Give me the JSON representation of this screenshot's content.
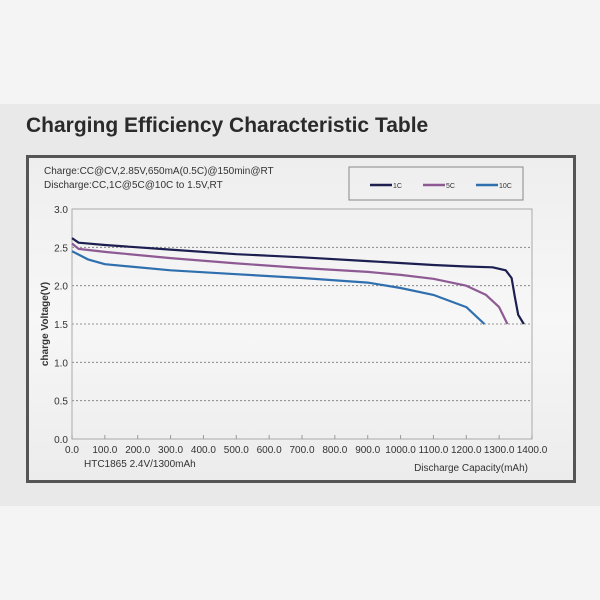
{
  "title": "Charging Efficiency Characteristic Table",
  "chart_data": {
    "type": "line",
    "title": "",
    "annotations": [
      "Charge:CC@CV,2.85V,650mA(0.5C)@150min@RT",
      "Discharge:CC,1C@5C@10C to 1.5V,RT",
      "HTC1865  2.4V/1300mAh"
    ],
    "xlabel": "Discharge Capacity(mAh)",
    "ylabel": "charge Voltage(V)",
    "xlim": [
      0,
      1400
    ],
    "ylim": [
      0,
      3.0
    ],
    "xticks": [
      "0.0",
      "100.0",
      "200.0",
      "300.0",
      "400.0",
      "500.0",
      "600.0",
      "700.0",
      "800.0",
      "900.0",
      "1000.0",
      "1100.0",
      "1200.0",
      "1300.0",
      "1400.0"
    ],
    "yticks": [
      "0.0",
      "0.5",
      "1.0",
      "1.5",
      "2.0",
      "2.5",
      "3.0"
    ],
    "grid": "horizontal dotted",
    "legend": "top-right",
    "series": [
      {
        "name": "1C",
        "color": "#1c1f4f",
        "points": [
          [
            0,
            2.62
          ],
          [
            20,
            2.56
          ],
          [
            100,
            2.53
          ],
          [
            300,
            2.47
          ],
          [
            500,
            2.41
          ],
          [
            700,
            2.37
          ],
          [
            900,
            2.32
          ],
          [
            1100,
            2.27
          ],
          [
            1200,
            2.25
          ],
          [
            1280,
            2.24
          ],
          [
            1320,
            2.2
          ],
          [
            1338,
            2.1
          ],
          [
            1348,
            1.85
          ],
          [
            1358,
            1.62
          ],
          [
            1375,
            1.5
          ]
        ]
      },
      {
        "name": "5C",
        "color": "#8e5a93",
        "points": [
          [
            0,
            2.55
          ],
          [
            20,
            2.48
          ],
          [
            100,
            2.44
          ],
          [
            300,
            2.36
          ],
          [
            500,
            2.29
          ],
          [
            700,
            2.23
          ],
          [
            900,
            2.18
          ],
          [
            1000,
            2.14
          ],
          [
            1100,
            2.09
          ],
          [
            1200,
            2.0
          ],
          [
            1260,
            1.88
          ],
          [
            1300,
            1.72
          ],
          [
            1325,
            1.5
          ]
        ]
      },
      {
        "name": "10C",
        "color": "#2f6fae",
        "points": [
          [
            0,
            2.45
          ],
          [
            50,
            2.34
          ],
          [
            100,
            2.28
          ],
          [
            300,
            2.2
          ],
          [
            500,
            2.15
          ],
          [
            700,
            2.1
          ],
          [
            900,
            2.04
          ],
          [
            1000,
            1.97
          ],
          [
            1100,
            1.88
          ],
          [
            1200,
            1.72
          ],
          [
            1255,
            1.5
          ]
        ]
      }
    ]
  }
}
